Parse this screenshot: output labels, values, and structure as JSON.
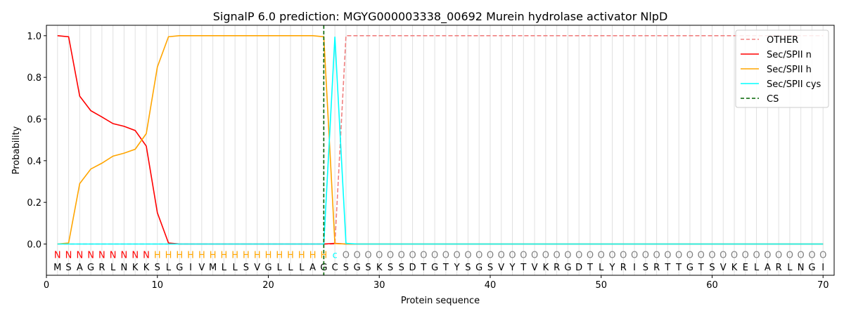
{
  "chart_data": {
    "type": "line",
    "title": "SignalP 6.0 prediction: MGYG000003338_00692 Murein hydrolase activator NlpD",
    "xlabel": "Protein sequence",
    "ylabel": "Probability",
    "xlim": [
      0,
      71
    ],
    "ylim": [
      -0.15,
      1.05
    ],
    "x_ticks": [
      0,
      10,
      20,
      30,
      40,
      50,
      60,
      70
    ],
    "y_ticks": [
      0.0,
      0.2,
      0.4,
      0.6,
      0.8,
      1.0
    ],
    "grid": "vertical lines at every residue",
    "legend_position": "top-right",
    "sequence": [
      "M",
      "S",
      "A",
      "G",
      "R",
      "L",
      "N",
      "K",
      "K",
      "S",
      "L",
      "G",
      "I",
      "V",
      "M",
      "L",
      "L",
      "S",
      "V",
      "G",
      "L",
      "L",
      "L",
      "A",
      "G",
      "C",
      "S",
      "G",
      "S",
      "K",
      "S",
      "S",
      "D",
      "T",
      "G",
      "T",
      "Y",
      "S",
      "G",
      "S",
      "V",
      "Y",
      "T",
      "V",
      "K",
      "R",
      "G",
      "D",
      "T",
      "L",
      "Y",
      "R",
      "I",
      "S",
      "R",
      "T",
      "T",
      "G",
      "T",
      "S",
      "V",
      "K",
      "E",
      "L",
      "A",
      "R",
      "L",
      "N",
      "G",
      "I"
    ],
    "labels": [
      "N",
      "N",
      "N",
      "N",
      "N",
      "N",
      "N",
      "N",
      "N",
      "H",
      "H",
      "H",
      "H",
      "H",
      "H",
      "H",
      "H",
      "H",
      "H",
      "H",
      "H",
      "H",
      "H",
      "H",
      "H",
      "c",
      "O",
      "O",
      "O",
      "O",
      "O",
      "O",
      "O",
      "O",
      "O",
      "O",
      "O",
      "O",
      "O",
      "O",
      "O",
      "O",
      "O",
      "O",
      "O",
      "O",
      "O",
      "O",
      "O",
      "O",
      "O",
      "O",
      "O",
      "O",
      "O",
      "O",
      "O",
      "O",
      "O",
      "O",
      "O",
      "O",
      "O",
      "O",
      "O",
      "O",
      "O",
      "O",
      "O",
      "O"
    ],
    "label_colors": {
      "N": "#ff0000",
      "H": "#ffa500",
      "c": "#00ffff",
      "O": "#808080"
    },
    "series": [
      {
        "name": "OTHER",
        "color": "#f08080",
        "dash": true,
        "values": [
          0,
          0,
          0,
          0,
          0,
          0,
          0,
          0,
          0,
          0,
          0,
          0,
          0,
          0,
          0,
          0,
          0,
          0,
          0,
          0,
          0,
          0,
          0,
          0,
          0,
          0,
          1,
          1,
          1,
          1,
          1,
          1,
          1,
          1,
          1,
          1,
          1,
          1,
          1,
          1,
          1,
          1,
          1,
          1,
          1,
          1,
          1,
          1,
          1,
          1,
          1,
          1,
          1,
          1,
          1,
          1,
          1,
          1,
          1,
          1,
          1,
          1,
          1,
          1,
          1,
          1,
          1,
          1,
          1,
          1
        ]
      },
      {
        "name": "Sec/SPII n",
        "color": "#ff0000",
        "dash": false,
        "values": [
          1.0,
          0.995,
          0.71,
          0.64,
          0.61,
          0.578,
          0.565,
          0.545,
          0.47,
          0.15,
          0.005,
          0,
          0,
          0,
          0,
          0,
          0,
          0,
          0,
          0,
          0,
          0,
          0,
          0,
          0,
          0.003,
          0,
          0,
          0,
          0,
          0,
          0,
          0,
          0,
          0,
          0,
          0,
          0,
          0,
          0,
          0,
          0,
          0,
          0,
          0,
          0,
          0,
          0,
          0,
          0,
          0,
          0,
          0,
          0,
          0,
          0,
          0,
          0,
          0,
          0,
          0,
          0,
          0,
          0,
          0,
          0,
          0,
          0,
          0,
          0
        ]
      },
      {
        "name": "Sec/SPII h",
        "color": "#ffa500",
        "dash": false,
        "values": [
          0,
          0.005,
          0.29,
          0.36,
          0.388,
          0.422,
          0.436,
          0.455,
          0.53,
          0.85,
          0.995,
          1.0,
          1.0,
          1.0,
          1.0,
          1.0,
          1.0,
          1.0,
          1.0,
          1.0,
          1.0,
          1.0,
          1.0,
          1.0,
          0.995,
          0.002,
          0,
          0,
          0,
          0,
          0,
          0,
          0,
          0,
          0,
          0,
          0,
          0,
          0,
          0,
          0,
          0,
          0,
          0,
          0,
          0,
          0,
          0,
          0,
          0,
          0,
          0,
          0,
          0,
          0,
          0,
          0,
          0,
          0,
          0,
          0,
          0,
          0,
          0,
          0,
          0,
          0,
          0,
          0,
          0
        ]
      },
      {
        "name": "Sec/SPII cys",
        "color": "#00ffff",
        "dash": false,
        "values": [
          0,
          0,
          0,
          0,
          0,
          0,
          0,
          0,
          0,
          0,
          0,
          0,
          0,
          0,
          0,
          0,
          0,
          0,
          0,
          0,
          0,
          0,
          0,
          0,
          0,
          0.995,
          0.003,
          0,
          0,
          0,
          0,
          0,
          0,
          0,
          0,
          0,
          0,
          0,
          0,
          0,
          0,
          0,
          0,
          0,
          0,
          0,
          0,
          0,
          0,
          0,
          0,
          0,
          0,
          0,
          0,
          0,
          0,
          0,
          0,
          0,
          0,
          0,
          0,
          0,
          0,
          0,
          0,
          0,
          0,
          0
        ]
      }
    ],
    "cs": {
      "name": "CS",
      "x": 25,
      "color": "#006400"
    }
  }
}
